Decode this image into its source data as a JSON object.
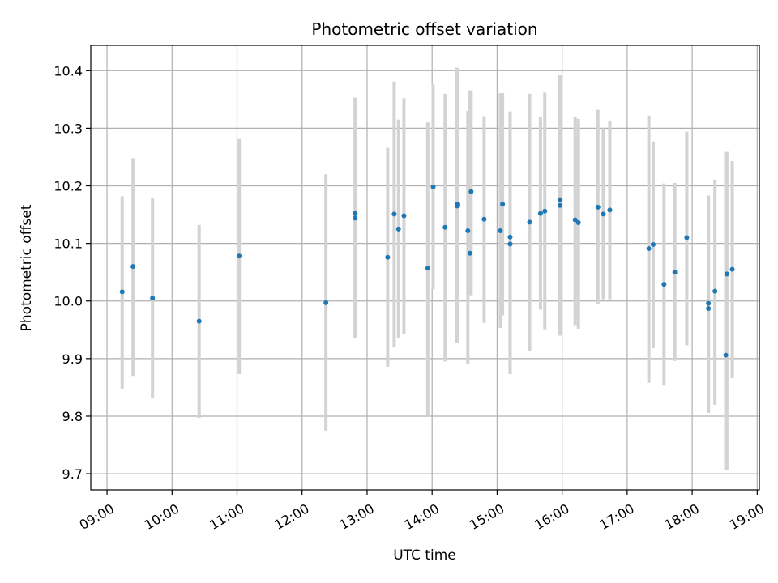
{
  "chart_data": {
    "type": "scatter",
    "title": "Photometric offset variation",
    "xlabel": "UTC time",
    "ylabel": "Photometric offset",
    "xlim": [
      "08:45",
      "19:02"
    ],
    "ylim": [
      9.672,
      10.444
    ],
    "grid": true,
    "x_ticks": [
      "09:00",
      "10:00",
      "11:00",
      "12:00",
      "13:00",
      "14:00",
      "15:00",
      "16:00",
      "17:00",
      "18:00",
      "19:00"
    ],
    "y_ticks": [
      9.7,
      9.8,
      9.9,
      10.0,
      10.1,
      10.2,
      10.3,
      10.4
    ],
    "y_tick_labels": [
      "9.7",
      "9.8",
      "9.9",
      "10.0",
      "10.1",
      "10.2",
      "10.3",
      "10.4"
    ],
    "colors": {
      "point": "#1f77b4",
      "errorbar": "#d3d3d3",
      "grid": "#b0b0b0"
    },
    "series": [
      {
        "x": [
          "09:14",
          "09:24",
          "09:42",
          "10:25",
          "11:02",
          "12:22",
          "12:49",
          "12:49",
          "13:19",
          "13:25",
          "13:29",
          "13:34",
          "13:56",
          "14:01",
          "14:12",
          "14:23",
          "14:23",
          "14:33",
          "14:35",
          "14:36",
          "14:48",
          "15:03",
          "15:05",
          "15:12",
          "15:12",
          "15:30",
          "15:40",
          "15:44",
          "15:58",
          "15:58",
          "16:12",
          "16:15",
          "16:33",
          "16:38",
          "16:44",
          "17:20",
          "17:24",
          "17:34",
          "17:44",
          "17:55",
          "18:15",
          "18:15",
          "18:21",
          "18:31",
          "18:32",
          "18:37"
        ],
        "y": [
          10.016,
          10.06,
          10.005,
          9.965,
          10.078,
          9.997,
          10.152,
          10.144,
          10.076,
          10.151,
          10.125,
          10.148,
          10.057,
          10.198,
          10.128,
          10.168,
          10.165,
          10.122,
          10.083,
          10.19,
          10.142,
          10.122,
          10.168,
          10.111,
          10.099,
          10.137,
          10.152,
          10.156,
          10.176,
          10.166,
          10.141,
          10.136,
          10.163,
          10.151,
          10.158,
          10.091,
          10.098,
          10.029,
          10.05,
          10.11,
          9.996,
          9.987,
          10.017,
          9.906,
          10.047,
          10.055
        ],
        "err_low": [
          9.848,
          9.87,
          9.832,
          9.797,
          9.873,
          9.775,
          9.936,
          9.936,
          9.886,
          9.92,
          9.935,
          9.943,
          9.802,
          10.02,
          9.895,
          9.928,
          9.928,
          9.89,
          10.01,
          10.01,
          9.962,
          9.953,
          9.975,
          9.873,
          9.873,
          9.913,
          9.985,
          9.951,
          9.94,
          9.94,
          9.958,
          9.952,
          9.995,
          10.003,
          10.003,
          9.858,
          9.918,
          9.853,
          9.896,
          9.923,
          9.806,
          9.806,
          9.82,
          9.707,
          9.707,
          9.866
        ],
        "err_high": [
          10.182,
          10.248,
          10.178,
          10.132,
          10.281,
          10.22,
          10.353,
          10.353,
          10.266,
          10.381,
          10.315,
          10.352,
          10.31,
          10.376,
          10.36,
          10.405,
          10.405,
          10.33,
          10.366,
          10.366,
          10.321,
          10.361,
          10.361,
          10.329,
          10.329,
          10.36,
          10.32,
          10.362,
          10.392,
          10.392,
          10.32,
          10.316,
          10.332,
          10.3,
          10.312,
          10.322,
          10.277,
          10.204,
          10.205,
          10.294,
          10.183,
          10.183,
          10.211,
          10.259,
          10.259,
          10.243
        ]
      }
    ]
  }
}
